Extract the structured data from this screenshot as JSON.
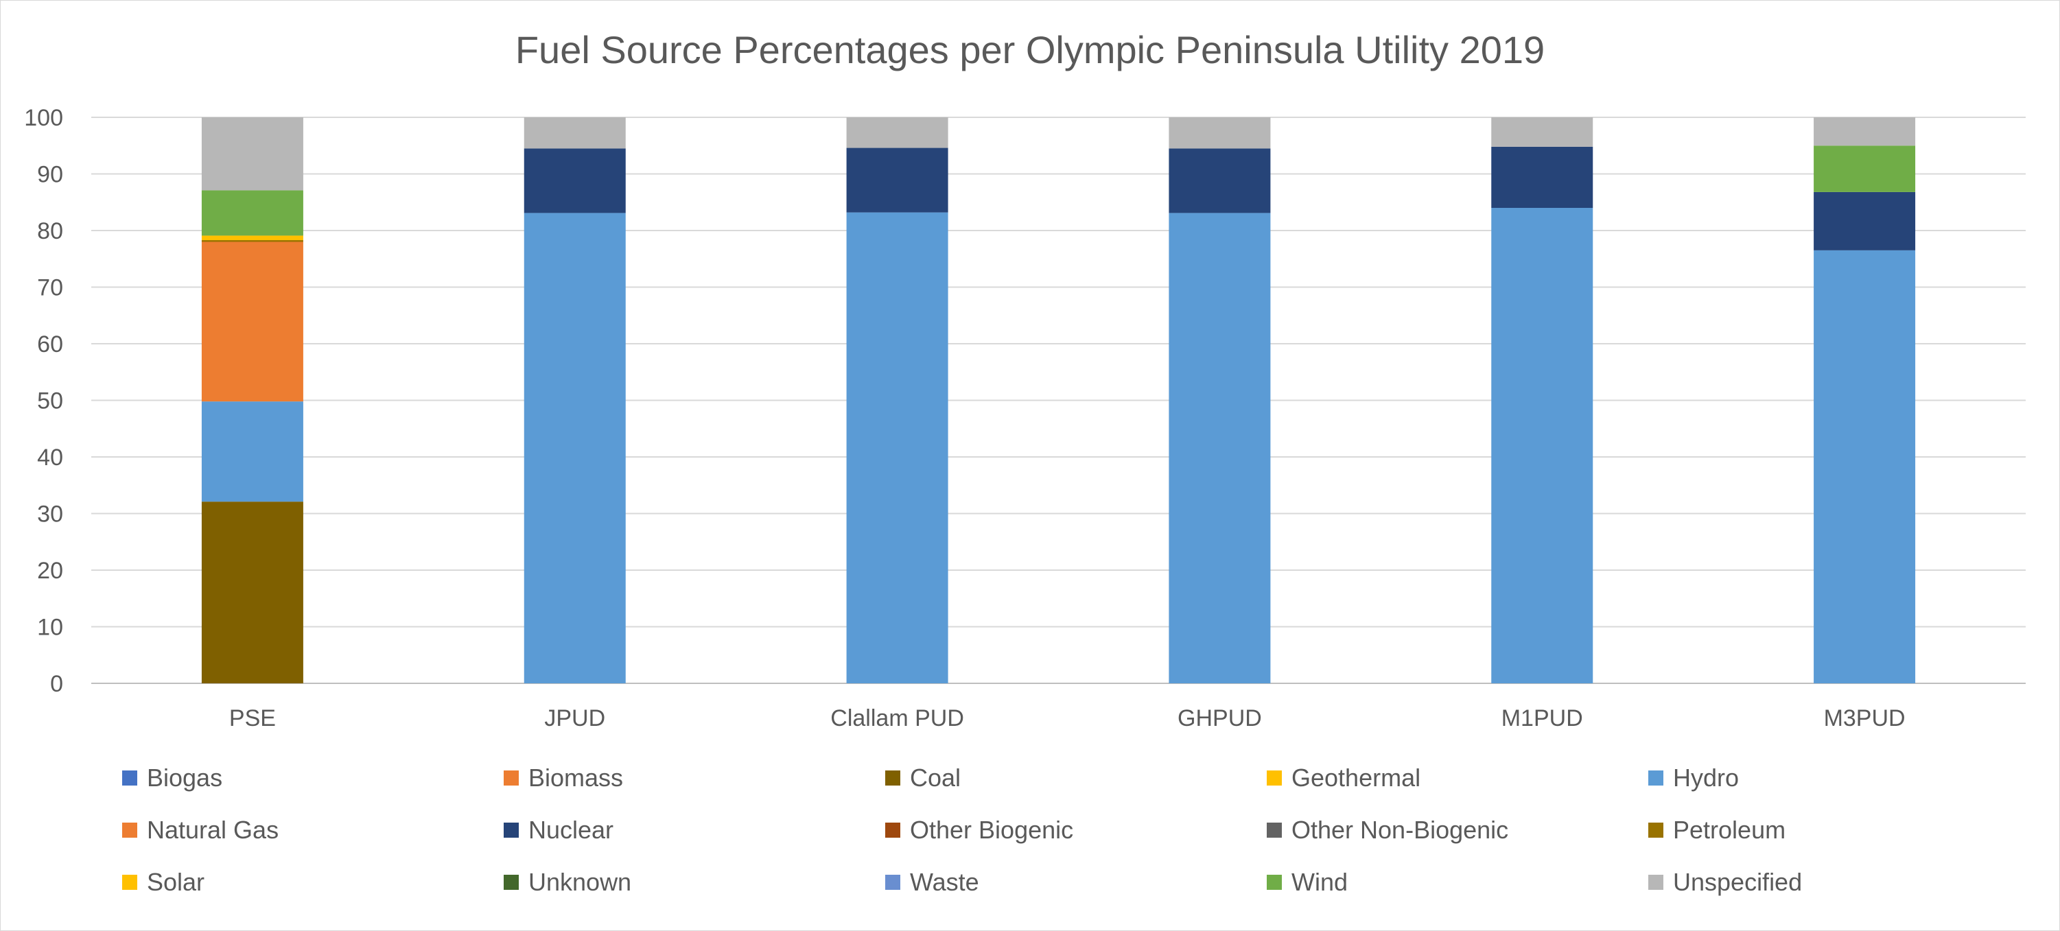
{
  "chart_data": {
    "type": "bar",
    "stacked": true,
    "title": "Fuel Source Percentages per Olympic Peninsula Utility 2019",
    "xlabel": "",
    "ylabel": "",
    "ylim": [
      0,
      100
    ],
    "yticks": [
      0,
      10,
      20,
      30,
      40,
      50,
      60,
      70,
      80,
      90,
      100
    ],
    "grid": true,
    "legend_position": "bottom",
    "categories": [
      "PSE",
      "JPUD",
      "Clallam PUD",
      "GHPUD",
      "M1PUD",
      "M3PUD"
    ],
    "series": [
      {
        "name": "Biogas",
        "color": "#4472c4",
        "values": [
          0,
          0,
          0,
          0,
          0,
          0
        ]
      },
      {
        "name": "Biomass",
        "color": "#ed7d31",
        "values": [
          0,
          0,
          0,
          0,
          0,
          0
        ]
      },
      {
        "name": "Coal",
        "color": "#7f6000",
        "values": [
          32.1,
          0,
          0,
          0,
          0,
          0
        ]
      },
      {
        "name": "Geothermal",
        "color": "#ffc000",
        "values": [
          0,
          0,
          0,
          0,
          0,
          0
        ]
      },
      {
        "name": "Hydro",
        "color": "#5b9bd5",
        "values": [
          17.7,
          83.1,
          83.2,
          83.1,
          84.0,
          76.5
        ]
      },
      {
        "name": "Natural Gas",
        "color": "#ed7d31",
        "values": [
          28.2,
          0,
          0,
          0,
          0,
          0
        ]
      },
      {
        "name": "Nuclear",
        "color": "#264478",
        "values": [
          0,
          11.4,
          11.4,
          11.4,
          10.8,
          10.3
        ]
      },
      {
        "name": "Other Biogenic",
        "color": "#9e480e",
        "values": [
          0,
          0,
          0,
          0,
          0,
          0
        ]
      },
      {
        "name": "Other Non-Biogenic",
        "color": "#636363",
        "values": [
          0,
          0,
          0,
          0,
          0,
          0
        ]
      },
      {
        "name": "Petroleum",
        "color": "#997300",
        "values": [
          0.3,
          0,
          0,
          0,
          0,
          0
        ]
      },
      {
        "name": "Solar",
        "color": "#ffc000",
        "values": [
          0.8,
          0,
          0,
          0,
          0,
          0
        ]
      },
      {
        "name": "Unknown",
        "color": "#43682b",
        "values": [
          0,
          0,
          0,
          0,
          0,
          0
        ]
      },
      {
        "name": "Waste",
        "color": "#698ed0",
        "values": [
          0,
          0,
          0,
          0,
          0,
          0
        ]
      },
      {
        "name": "Wind",
        "color": "#70ad47",
        "values": [
          8.0,
          0,
          0,
          0,
          0,
          8.2
        ]
      },
      {
        "name": "Unspecified",
        "color": "#b7b7b7",
        "values": [
          12.9,
          5.5,
          5.4,
          5.5,
          5.2,
          5.0
        ]
      }
    ]
  }
}
